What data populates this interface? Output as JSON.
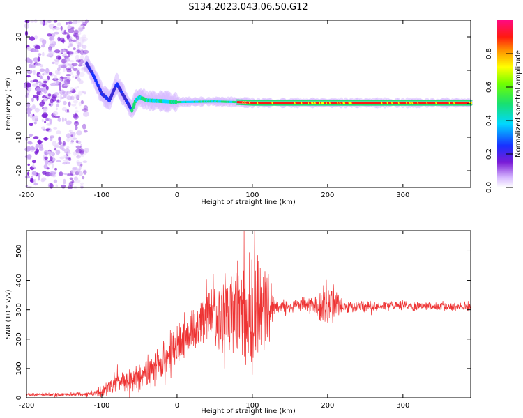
{
  "title": "S134.2023.043.06.50.G12",
  "chart_data": [
    {
      "type": "heatmap",
      "xlabel": "Height of straight line (km)",
      "ylabel": "Frequency (Hz)",
      "xlim": [
        -200,
        390
      ],
      "ylim": [
        -25,
        25
      ],
      "xticks": [
        -200,
        -100,
        0,
        100,
        200,
        300
      ],
      "yticks": [
        -20,
        -10,
        0,
        10,
        20
      ],
      "colormap": "rainbow (white at 0, purple, blue, cyan, green, yellow, red, magenta at 1)",
      "ridge": [
        {
          "x": -120,
          "y": 12
        },
        {
          "x": -110,
          "y": 8
        },
        {
          "x": -100,
          "y": 3
        },
        {
          "x": -90,
          "y": 1
        },
        {
          "x": -80,
          "y": 6
        },
        {
          "x": -70,
          "y": 2
        },
        {
          "x": -60,
          "y": -2
        },
        {
          "x": -55,
          "y": 1
        },
        {
          "x": -50,
          "y": 2
        },
        {
          "x": -40,
          "y": 1
        },
        {
          "x": -20,
          "y": 0.8
        },
        {
          "x": 0,
          "y": 0.5
        },
        {
          "x": 50,
          "y": 0.7
        },
        {
          "x": 80,
          "y": 0.5
        },
        {
          "x": 100,
          "y": 0.3
        },
        {
          "x": 200,
          "y": 0.3
        },
        {
          "x": 300,
          "y": 0.3
        },
        {
          "x": 390,
          "y": 0.3
        }
      ],
      "scatter_region": {
        "x_from": -200,
        "x_to": -120,
        "y_from": -25,
        "y_to": 25
      },
      "colorbar": {
        "label": "Normalized spectral amplitude",
        "ticks": [
          "0.0",
          "0.2",
          "0.4",
          "0.6",
          "0.8"
        ],
        "range": [
          0,
          1
        ]
      }
    },
    {
      "type": "line",
      "xlabel": "Height of straight line (km)",
      "ylabel": "SNR (10 * v/v)",
      "xlim": [
        -200,
        390
      ],
      "ylim": [
        0,
        570
      ],
      "xticks": [
        -200,
        -100,
        0,
        100,
        200,
        300
      ],
      "yticks": [
        0,
        100,
        200,
        300,
        400,
        500
      ],
      "color": "#ee3333",
      "envelope": [
        {
          "x": -200,
          "base": 10,
          "amp": 6
        },
        {
          "x": -120,
          "base": 12,
          "amp": 8
        },
        {
          "x": -100,
          "base": 20,
          "amp": 20
        },
        {
          "x": -80,
          "base": 50,
          "amp": 40
        },
        {
          "x": -60,
          "base": 60,
          "amp": 45
        },
        {
          "x": -40,
          "base": 80,
          "amp": 50
        },
        {
          "x": -20,
          "base": 130,
          "amp": 80
        },
        {
          "x": 0,
          "base": 180,
          "amp": 80
        },
        {
          "x": 20,
          "base": 230,
          "amp": 80
        },
        {
          "x": 40,
          "base": 270,
          "amp": 100
        },
        {
          "x": 60,
          "base": 290,
          "amp": 170
        },
        {
          "x": 80,
          "base": 300,
          "amp": 180
        },
        {
          "x": 100,
          "base": 310,
          "amp": 230
        },
        {
          "x": 120,
          "base": 310,
          "amp": 180
        },
        {
          "x": 130,
          "base": 310,
          "amp": 20
        },
        {
          "x": 180,
          "base": 320,
          "amp": 30
        },
        {
          "x": 200,
          "base": 320,
          "amp": 90
        },
        {
          "x": 220,
          "base": 310,
          "amp": 25
        },
        {
          "x": 300,
          "base": 315,
          "amp": 15
        },
        {
          "x": 390,
          "base": 310,
          "amp": 15
        }
      ]
    }
  ]
}
